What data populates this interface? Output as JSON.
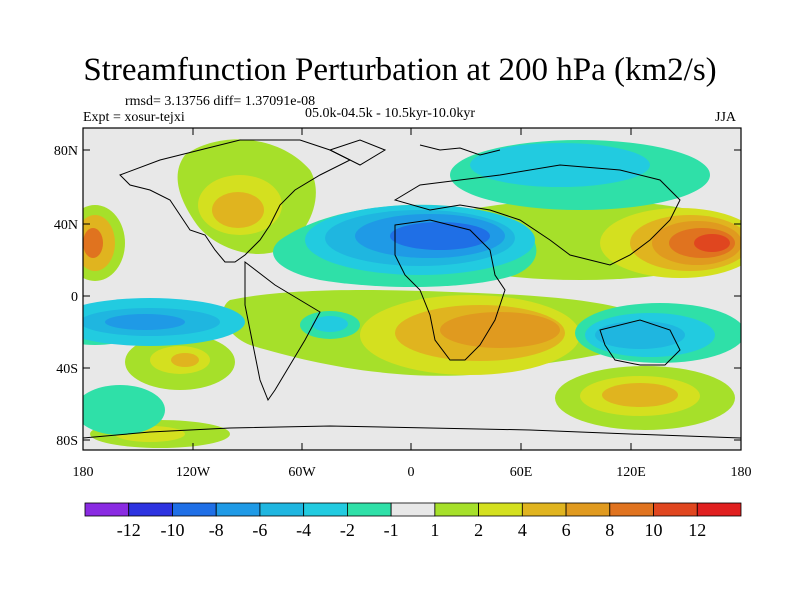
{
  "title": "Streamfunction Perturbation at 200 hPa (km2/s)",
  "stats": "rmsd= 3.13756 diff= 1.37091e-08",
  "experiment": "Expt = xosur-tejxi",
  "period": "05.0k-04.5k - 10.5kyr-10.0kyr",
  "season": "JJA",
  "axes": {
    "lat_labels": [
      "80N",
      "40N",
      "0",
      "40S",
      "80S"
    ],
    "lon_labels": [
      "180",
      "120W",
      "60W",
      "0",
      "60E",
      "120E",
      "180"
    ]
  },
  "colorbar": {
    "labels": [
      "-12",
      "-10",
      "-8",
      "-6",
      "-4",
      "-2",
      "-1",
      "1",
      "2",
      "4",
      "6",
      "8",
      "10",
      "12"
    ],
    "colors": [
      "#8a2be2",
      "#2d33e0",
      "#1f6fe6",
      "#1f9ae6",
      "#1fb6e0",
      "#22cbe0",
      "#2fe0a8",
      "#e8e8e8",
      "#a6e02a",
      "#d4e01f",
      "#e0b41f",
      "#e09a1f",
      "#e0731f",
      "#e0461f",
      "#e01f1f"
    ]
  },
  "map_colors": {
    "background": "#e8e8e8",
    "coast": "#000000"
  }
}
